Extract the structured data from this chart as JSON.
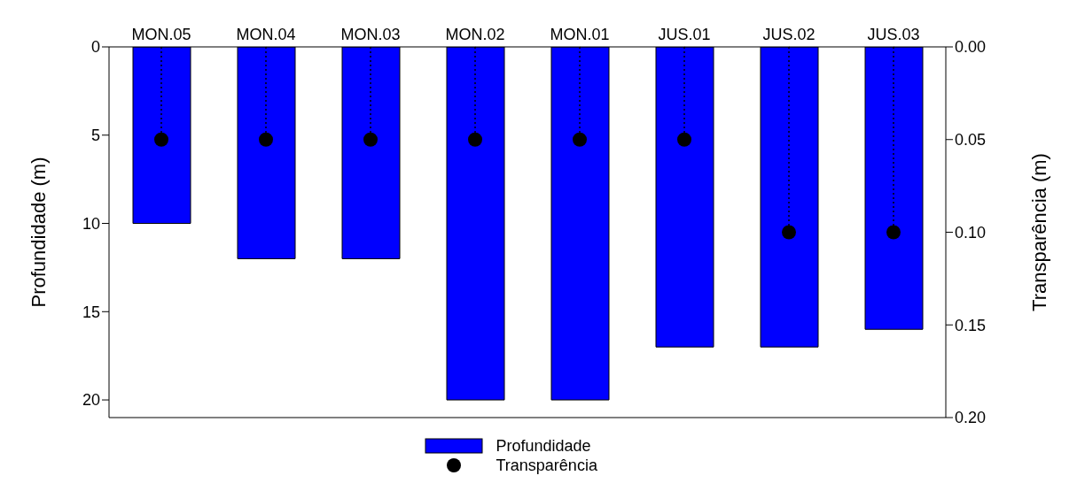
{
  "chart_data": {
    "type": "bar",
    "categories": [
      "MON.05",
      "MON.04",
      "MON.03",
      "MON.02",
      "MON.01",
      "JUS.01",
      "JUS.02",
      "JUS.03"
    ],
    "series": [
      {
        "name": "Profundidade",
        "color": "#0000ff",
        "values": [
          10,
          12,
          12,
          20,
          20,
          17,
          17,
          16
        ]
      },
      {
        "name": "Transparência",
        "type": "lollipop",
        "axis": "y2",
        "color": "#000000",
        "marker": "circle",
        "line_style": "dotted",
        "values": [
          0.05,
          0.05,
          0.05,
          0.05,
          0.05,
          0.05,
          0.1,
          0.1
        ]
      }
    ],
    "ylabel": "Profundidade (m)",
    "y2label": "Transparência (m)",
    "ylim": [
      21,
      0
    ],
    "yticks": [
      0,
      5,
      10,
      15,
      20
    ],
    "y2lim": [
      0.2,
      0
    ],
    "y2ticks": [
      {
        "value": 0,
        "label": "0.00"
      },
      {
        "value": 0.05,
        "label": "0.05"
      },
      {
        "value": 0.1,
        "label": "0.10"
      },
      {
        "value": 0.15,
        "label": "0.15"
      },
      {
        "value": 0.2,
        "label": "0.20"
      }
    ],
    "grid": false,
    "legend": "bottom"
  }
}
